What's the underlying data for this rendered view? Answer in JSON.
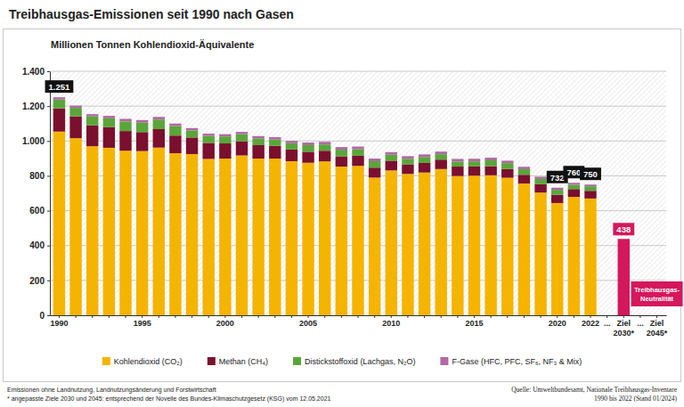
{
  "chart_data": {
    "type": "bar",
    "stacked": true,
    "grid": true,
    "legend": "bottom",
    "title": "Treibhausgas-Emissionen seit 1990 nach Gasen",
    "subtitle": "Millionen Tonnen Kohlendioxid-Äquivalente",
    "categories": [
      "1990",
      null,
      null,
      null,
      null,
      "1995",
      null,
      null,
      null,
      null,
      "2000",
      null,
      null,
      null,
      null,
      "2005",
      null,
      null,
      null,
      null,
      "2010",
      null,
      null,
      null,
      null,
      "2015",
      null,
      null,
      null,
      null,
      "2020",
      null,
      "2022",
      "...",
      "Ziel 2030*",
      "...",
      "Ziel 2045*"
    ],
    "series": [
      {
        "name": "Kohlendioxid (CO₂)",
        "color": "#f5b400",
        "values": [
          1054,
          1016,
          970,
          961,
          944,
          942,
          962,
          930,
          925,
          897,
          899,
          917,
          899,
          899,
          884,
          875,
          883,
          853,
          857,
          790,
          831,
          811,
          819,
          839,
          799,
          801,
          803,
          789,
          756,
          704,
          644,
          679,
          670,
          null,
          null,
          null,
          null
        ]
      },
      {
        "name": "Methan (CH₄)",
        "color": "#7b0f2e",
        "values": [
          133,
          125,
          120,
          118,
          113,
          109,
          106,
          101,
          95,
          92,
          87,
          81,
          77,
          73,
          67,
          63,
          61,
          59,
          58,
          57,
          56,
          55,
          55,
          54,
          54,
          53,
          52,
          51,
          50,
          48,
          47,
          45,
          44,
          null,
          null,
          null,
          null
        ]
      },
      {
        "name": "Distickstoffoxid (Lachgas, N₂O)",
        "color": "#5aa63a",
        "values": [
          51,
          49,
          51,
          51,
          55,
          54,
          55,
          55,
          40,
          40,
          40,
          41,
          39,
          36,
          36,
          38,
          36,
          38,
          38,
          37,
          34,
          32,
          34,
          31,
          29,
          29,
          34,
          33,
          32,
          30,
          29,
          25,
          26,
          null,
          null,
          null,
          null
        ]
      },
      {
        "name": "F-Gase (HFC, PFC, SF₆, NF₃ & Mix)",
        "color": "#b06aa3",
        "values": [
          13,
          13,
          13,
          14,
          15,
          15,
          15,
          14,
          14,
          13,
          13,
          13,
          13,
          14,
          14,
          15,
          15,
          15,
          15,
          15,
          15,
          15,
          15,
          15,
          15,
          15,
          15,
          14,
          14,
          13,
          12,
          11,
          10,
          null,
          null,
          null,
          null
        ]
      }
    ],
    "totals": [
      1251,
      null,
      null,
      null,
      null,
      null,
      null,
      null,
      null,
      null,
      null,
      null,
      null,
      null,
      null,
      null,
      null,
      null,
      null,
      null,
      null,
      null,
      null,
      null,
      null,
      null,
      null,
      null,
      null,
      null,
      732,
      760,
      750,
      null,
      null,
      null,
      null
    ],
    "total_labels": [
      "1.251",
      null,
      null,
      null,
      null,
      null,
      null,
      null,
      null,
      null,
      null,
      null,
      null,
      null,
      null,
      null,
      null,
      null,
      null,
      null,
      null,
      null,
      null,
      null,
      null,
      null,
      null,
      null,
      null,
      null,
      "732",
      "760",
      "750",
      null,
      null,
      null,
      null
    ],
    "target": {
      "color": "#d5175c",
      "data_labels": true,
      "values": [
        null,
        null,
        null,
        null,
        null,
        null,
        null,
        null,
        null,
        null,
        null,
        null,
        null,
        null,
        null,
        null,
        null,
        null,
        null,
        null,
        null,
        null,
        null,
        null,
        null,
        null,
        null,
        null,
        null,
        null,
        null,
        null,
        null,
        null,
        438,
        null,
        0
      ]
    },
    "annotations": [
      {
        "text": "Treibhausgas-Neutralität"
      }
    ],
    "ylim": [
      0,
      1400
    ],
    "yticks": [
      0,
      200,
      400,
      600,
      800,
      {
        "value": 1000,
        "label": "1.000"
      },
      {
        "value": 1200,
        "label": "1.200"
      },
      {
        "value": 1400,
        "label": "1.400"
      }
    ],
    "notes": [
      "Emissionen ohne Landnutzung, Landnutzungsänderung und Forstwirtschaft",
      "* angepasste Ziele 2030 und 2045: entsprechend der Novelle des Bundes-Klimaschutzgesetz (KSG) vom 12.05.2021"
    ],
    "source": [
      "Quelle: Umweltbundesamt, Nationale Treibhausgas-Inventare",
      "1990 bis 2022 (Stand 01/2024)"
    ]
  }
}
